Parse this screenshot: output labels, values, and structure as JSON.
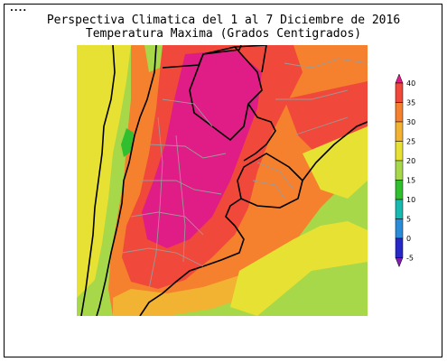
{
  "header": {
    "dots": "...."
  },
  "title": {
    "line1": "Perspectiva Climatica del 1 al 7 Diciembre de 2016",
    "line2": "Temperatura Maxima (Grados Centigrados)"
  },
  "legend": {
    "labels": [
      "40",
      "35",
      "30",
      "25",
      "20",
      "15",
      "10",
      "5",
      "0",
      "-5"
    ],
    "colors": [
      "#e11a8a",
      "#f0483a",
      "#f5802e",
      "#f2b232",
      "#e6e132",
      "#a6d84a",
      "#2fbf2f",
      "#18b9b0",
      "#2a8cd8",
      "#2828c8",
      "#7a1fb0"
    ]
  },
  "map": {
    "palette": {
      "magenta": "#e01c86",
      "red": "#f0483a",
      "orange": "#f5802e",
      "light_orange": "#f2b232",
      "yellow": "#e6e132",
      "light_green": "#a6d84a",
      "green": "#2fbf2f",
      "border": "#000000",
      "province": "#9a9a9a"
    }
  }
}
